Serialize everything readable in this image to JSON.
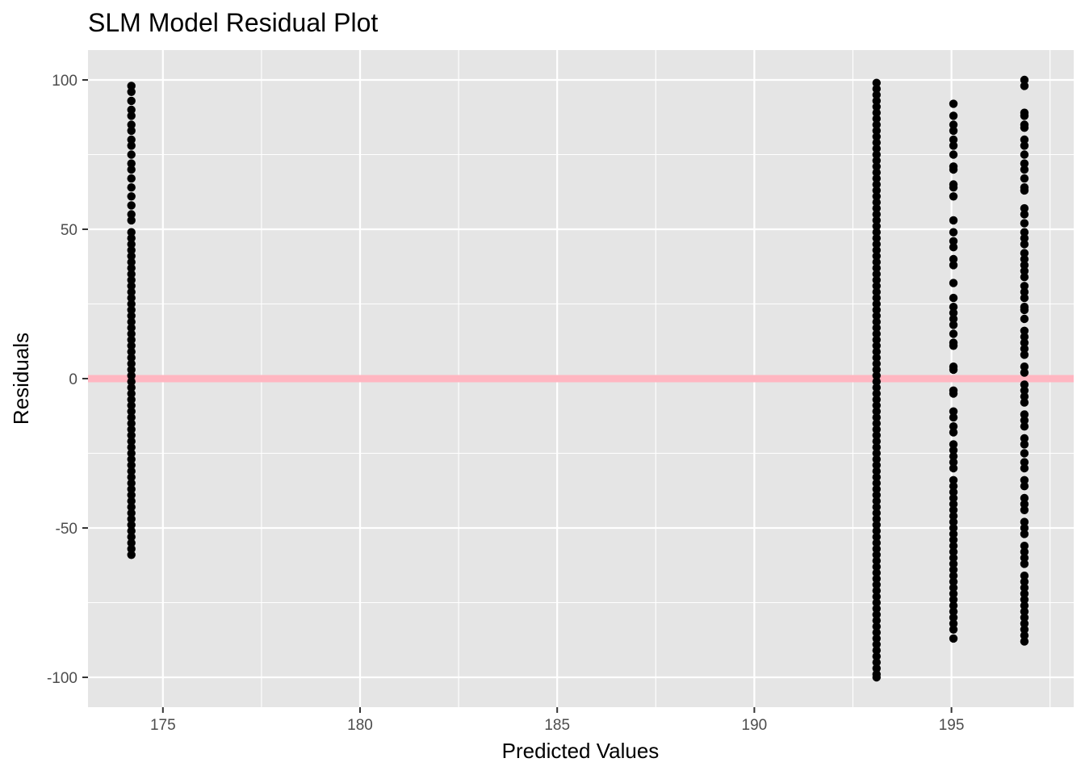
{
  "chart_data": {
    "type": "scatter",
    "title": "SLM Model Residual Plot",
    "xlabel": "Predicted Values",
    "ylabel": "Residuals",
    "xlim": [
      173.1,
      198.1
    ],
    "ylim": [
      -110,
      110
    ],
    "x_ticks": [
      175,
      180,
      185,
      190,
      195
    ],
    "x_tick_labels": [
      "175",
      "180",
      "185",
      "190",
      "195"
    ],
    "y_ticks": [
      -100,
      -50,
      0,
      50,
      100
    ],
    "y_tick_labels": [
      "-100",
      "-50",
      "0",
      "50",
      "100"
    ],
    "grid": true,
    "panel_background": "#e5e5e5",
    "point_color": "#000000",
    "hline": {
      "y": 0,
      "color": "#ffb6c1"
    },
    "series": [
      {
        "x": 174.2,
        "residuals": [
          98,
          96,
          93,
          90,
          88,
          85,
          83,
          80,
          78,
          75,
          72,
          70,
          67,
          64,
          61,
          58,
          55,
          53,
          49,
          47,
          45,
          43,
          41,
          39,
          37,
          35,
          33,
          31,
          29,
          27,
          25,
          23,
          21,
          19,
          17,
          15,
          13,
          11,
          9,
          7,
          5,
          3,
          1,
          -1,
          -3,
          -5,
          -7,
          -9,
          -11,
          -13,
          -15,
          -17,
          -19,
          -21,
          -23,
          -25,
          -27,
          -29,
          -31,
          -33,
          -35,
          -37,
          -39,
          -41,
          -43,
          -45,
          -47,
          -49,
          -51,
          -53,
          -55,
          -57,
          -59
        ]
      },
      {
        "x": 193.1,
        "residuals": [
          99,
          97,
          95,
          93,
          91,
          89,
          87,
          85,
          83,
          81,
          79,
          77,
          75,
          73,
          71,
          69,
          67,
          65,
          63,
          61,
          59,
          57,
          55,
          53,
          51,
          49,
          47,
          45,
          43,
          41,
          39,
          37,
          35,
          33,
          31,
          29,
          27,
          25,
          23,
          21,
          19,
          17,
          15,
          13,
          11,
          9,
          7,
          5,
          3,
          1,
          -1,
          -3,
          -5,
          -7,
          -9,
          -11,
          -13,
          -15,
          -17,
          -19,
          -21,
          -23,
          -25,
          -27,
          -29,
          -31,
          -33,
          -35,
          -37,
          -39,
          -41,
          -43,
          -45,
          -47,
          -49,
          -51,
          -53,
          -55,
          -57,
          -59,
          -61,
          -63,
          -65,
          -67,
          -69,
          -71,
          -73,
          -75,
          -77,
          -79,
          -81,
          -83,
          -85,
          -87,
          -89,
          -91,
          -93,
          -95,
          -97,
          -99,
          -100
        ]
      },
      {
        "x": 195.05,
        "residuals": [
          92,
          88,
          85,
          83,
          80,
          78,
          75,
          71,
          70,
          65,
          64,
          61,
          53,
          49,
          46,
          44,
          40,
          38,
          32,
          27,
          24,
          22,
          20,
          18,
          15,
          12,
          11,
          4,
          3,
          -4,
          -5,
          -11,
          -13,
          -16,
          -18,
          -22,
          -24,
          -26,
          -28,
          -30,
          -34,
          -36,
          -38,
          -40,
          -42,
          -44,
          -46,
          -48,
          -50,
          -52,
          -54,
          -56,
          -58,
          -60,
          -62,
          -64,
          -66,
          -68,
          -70,
          -72,
          -74,
          -76,
          -78,
          -80,
          -82,
          -84,
          -87
        ]
      },
      {
        "x": 196.85,
        "residuals": [
          100,
          98,
          89,
          88,
          85,
          84,
          80,
          78,
          75,
          72,
          70,
          67,
          64,
          63,
          57,
          55,
          52,
          49,
          47,
          45,
          42,
          40,
          38,
          36,
          34,
          31,
          29,
          27,
          24,
          23,
          20,
          16,
          14,
          12,
          10,
          8,
          4,
          2,
          -2,
          -4,
          -6,
          -8,
          -12,
          -14,
          -16,
          -20,
          -22,
          -25,
          -28,
          -30,
          -34,
          -36,
          -40,
          -42,
          -44,
          -48,
          -50,
          -52,
          -56,
          -58,
          -60,
          -62,
          -66,
          -68,
          -70,
          -72,
          -74,
          -76,
          -78,
          -80,
          -82,
          -84,
          -86,
          -88
        ]
      }
    ]
  }
}
